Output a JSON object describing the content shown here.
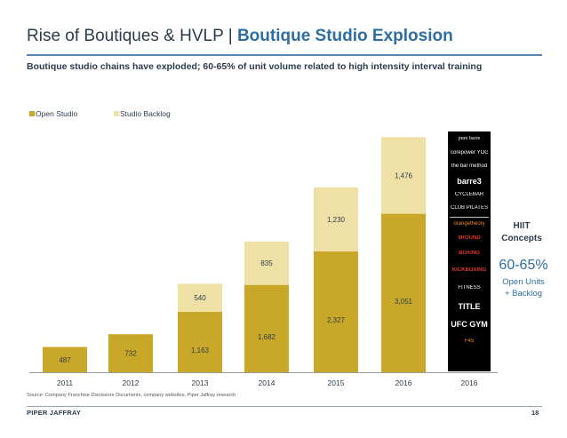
{
  "slide": {
    "title_main": "Rise of Boutiques & HVLP",
    "title_sep": " | ",
    "title_accent": "Boutique Studio Explosion",
    "subtitle": "Boutique studio chains have exploded; 60-65% of unit volume related to high intensity interval training",
    "source": "Source: Company Franchise Disclosure Documents, company websites, Piper Jaffray research",
    "footer_brand": "PIPER JAFFRAY",
    "page_number": "18"
  },
  "chart_data": {
    "type": "bar",
    "stacked": true,
    "categories": [
      "2011",
      "2012",
      "2013",
      "2014",
      "2015",
      "2016",
      "2016"
    ],
    "series": [
      {
        "name": "Open Studio",
        "color": "#c9a829",
        "values": [
          487,
          732,
          1163,
          1682,
          2327,
          3051,
          null
        ]
      },
      {
        "name": "Studio Backlog",
        "color": "#efe1a6",
        "values": [
          0,
          0,
          540,
          835,
          1230,
          1476,
          null
        ]
      }
    ],
    "data_labels": {
      "open": [
        "487",
        "732",
        "1,163",
        "1,682",
        "2,327",
        "3,051",
        ""
      ],
      "backlog": [
        "",
        "",
        "540",
        "835",
        "1,230",
        "1,476",
        ""
      ]
    },
    "legend_position": "top-left",
    "ylim": [
      0,
      4600
    ]
  },
  "logos": {
    "panel_color": "#000000",
    "items": [
      {
        "name": "pure-barre-logo",
        "text": "pure barre",
        "style": "serif"
      },
      {
        "name": "corepower-yoga-logo",
        "text": "corepower YOGA",
        "style": ""
      },
      {
        "name": "bar-method-logo",
        "text": "the bar method",
        "style": ""
      },
      {
        "name": "barre3-logo",
        "text": "barre3",
        "style": "bold"
      },
      {
        "name": "cyclebar-logo",
        "text": "CYCLEBAR",
        "style": ""
      },
      {
        "name": "club-pilates-logo",
        "text": "CLUB PILATES",
        "style": ""
      },
      {
        "name": "orangetheory-logo",
        "text": "orangetheory",
        "style": "orange"
      },
      {
        "name": "9round-logo",
        "text": "9ROUND",
        "style": "red"
      },
      {
        "name": "title-boxing-badge-logo",
        "text": "BOXING",
        "style": "red"
      },
      {
        "name": "ilovekickboxing-logo",
        "text": "KICKBOXING",
        "style": "red"
      },
      {
        "name": "boxing-eagle-logo",
        "text": "FITNESS",
        "style": ""
      },
      {
        "name": "title-logo",
        "text": "TITLE",
        "style": "bold"
      },
      {
        "name": "ufc-gym-logo",
        "text": "UFC GYM",
        "style": "bold"
      },
      {
        "name": "f45-logo",
        "text": "F45",
        "style": "orange"
      }
    ]
  },
  "hiit": {
    "label_line1": "HIIT",
    "label_line2": "Concepts",
    "percent": "60-65%",
    "sub_line1": "Open Units",
    "sub_line2": "+ Backlog",
    "color": "#2e6ea1"
  }
}
